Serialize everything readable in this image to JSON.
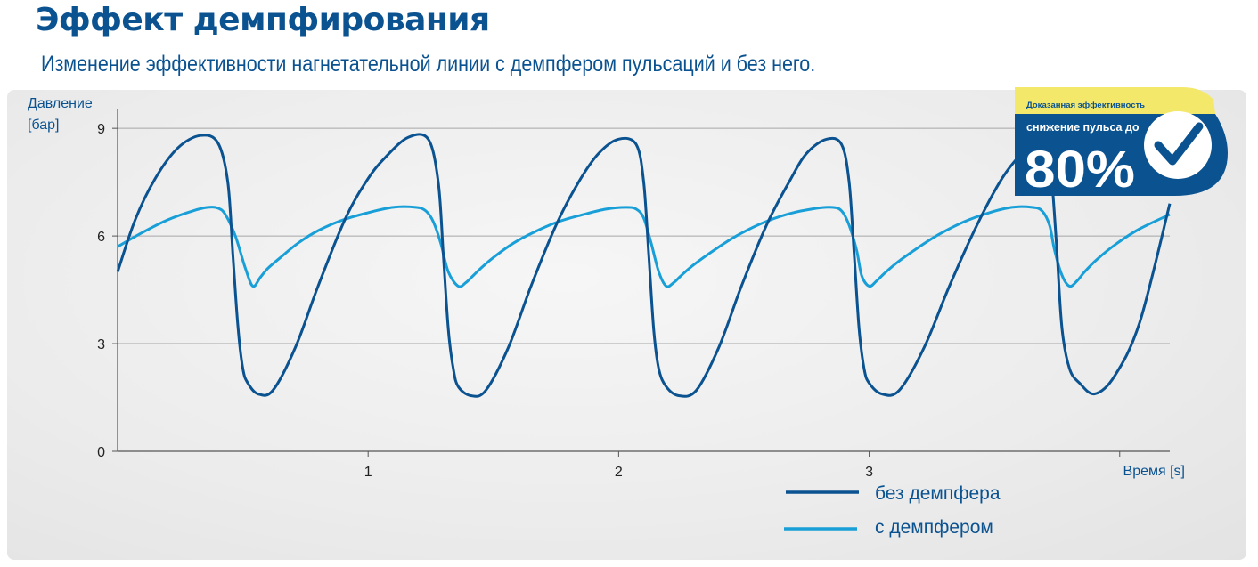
{
  "header": {
    "title": "Эффект демпфирования",
    "subtitle": "Изменение эффективности нагнетательной линии с демпфером пульсаций и без него."
  },
  "badge": {
    "top_label": "Доказанная эффективность",
    "line1": "снижение пульса до",
    "value": "80%",
    "icon": "check-icon"
  },
  "colors": {
    "dark_blue": "#0a5290",
    "light_blue": "#189fd8",
    "badge_yellow": "#f4e86a",
    "grid": "#a6a6a6"
  },
  "chart_data": {
    "type": "line",
    "ylabel": [
      "Давление",
      "[бар]"
    ],
    "xlabel": "Время [s]",
    "ylim": [
      0,
      9.5
    ],
    "xlim": [
      0,
      4.2
    ],
    "yticks": [
      "0",
      "3",
      "6",
      "9"
    ],
    "xticks": [
      "1",
      "2",
      "3"
    ],
    "grid": "horizontal",
    "legend_position": "bottom-right",
    "series": [
      {
        "name": "без демпфера",
        "color": "#0a5290",
        "x": [
          0.0,
          0.07,
          0.15,
          0.24,
          0.33,
          0.4,
          0.44,
          0.46,
          0.48,
          0.5,
          0.52,
          0.56,
          0.62,
          0.71,
          0.8,
          0.91,
          1.0,
          1.07,
          1.16,
          1.24,
          1.28,
          1.3,
          1.32,
          1.34,
          1.36,
          1.41,
          1.47,
          1.56,
          1.65,
          1.75,
          1.84,
          1.92,
          2.0,
          2.07,
          2.1,
          2.12,
          2.14,
          2.16,
          2.19,
          2.24,
          2.31,
          2.4,
          2.49,
          2.59,
          2.68,
          2.75,
          2.83,
          2.89,
          2.92,
          2.94,
          2.96,
          2.98,
          3.0,
          3.05,
          3.12,
          3.22,
          3.32,
          3.43,
          3.53,
          3.61,
          3.69,
          3.71,
          3.73,
          3.75,
          3.77,
          3.8,
          3.84,
          3.9,
          3.98,
          4.08,
          4.2
        ],
        "y": [
          5.0,
          6.45,
          7.6,
          8.45,
          8.8,
          8.6,
          7.5,
          5.5,
          3.5,
          2.3,
          1.9,
          1.6,
          1.7,
          2.9,
          4.6,
          6.5,
          7.6,
          8.2,
          8.75,
          8.7,
          7.5,
          5.5,
          3.4,
          2.3,
          1.8,
          1.55,
          1.7,
          2.9,
          4.6,
          6.3,
          7.5,
          8.3,
          8.7,
          8.55,
          7.5,
          5.5,
          3.4,
          2.3,
          1.8,
          1.55,
          1.7,
          2.9,
          4.6,
          6.3,
          7.5,
          8.3,
          8.7,
          8.55,
          7.5,
          5.5,
          3.4,
          2.3,
          1.9,
          1.6,
          1.7,
          2.9,
          4.6,
          6.3,
          7.6,
          8.3,
          8.7,
          8.6,
          7.5,
          5.5,
          3.4,
          2.3,
          1.9,
          1.6,
          2.1,
          3.6,
          6.9
        ]
      },
      {
        "name": "с демпфером",
        "color": "#189fd8",
        "x": [
          0.0,
          0.1,
          0.2,
          0.3,
          0.36,
          0.4,
          0.43,
          0.47,
          0.51,
          0.54,
          0.57,
          0.6,
          0.65,
          0.72,
          0.8,
          0.9,
          1.0,
          1.1,
          1.19,
          1.23,
          1.26,
          1.29,
          1.32,
          1.36,
          1.39,
          1.42,
          1.45,
          1.5,
          1.58,
          1.66,
          1.76,
          1.86,
          1.95,
          2.03,
          2.07,
          2.1,
          2.13,
          2.16,
          2.19,
          2.22,
          2.25,
          2.3,
          2.38,
          2.47,
          2.57,
          2.67,
          2.77,
          2.85,
          2.89,
          2.92,
          2.95,
          2.97,
          3.0,
          3.03,
          3.06,
          3.11,
          3.19,
          3.28,
          3.38,
          3.48,
          3.57,
          3.65,
          3.69,
          3.72,
          3.74,
          3.77,
          3.8,
          3.83,
          3.86,
          3.91,
          3.99,
          4.08,
          4.2
        ],
        "y": [
          5.7,
          6.1,
          6.45,
          6.7,
          6.8,
          6.78,
          6.6,
          6.0,
          5.1,
          4.6,
          4.85,
          5.1,
          5.4,
          5.8,
          6.15,
          6.45,
          6.65,
          6.8,
          6.8,
          6.7,
          6.4,
          5.8,
          5.0,
          4.6,
          4.7,
          4.9,
          5.1,
          5.4,
          5.8,
          6.1,
          6.4,
          6.6,
          6.75,
          6.8,
          6.75,
          6.5,
          5.8,
          5.0,
          4.6,
          4.7,
          4.9,
          5.2,
          5.6,
          6.0,
          6.35,
          6.6,
          6.75,
          6.8,
          6.7,
          6.3,
          5.6,
          4.9,
          4.6,
          4.75,
          4.95,
          5.25,
          5.65,
          6.05,
          6.4,
          6.65,
          6.8,
          6.8,
          6.7,
          6.3,
          5.6,
          4.9,
          4.6,
          4.75,
          5.0,
          5.35,
          5.8,
          6.2,
          6.6
        ]
      }
    ]
  }
}
